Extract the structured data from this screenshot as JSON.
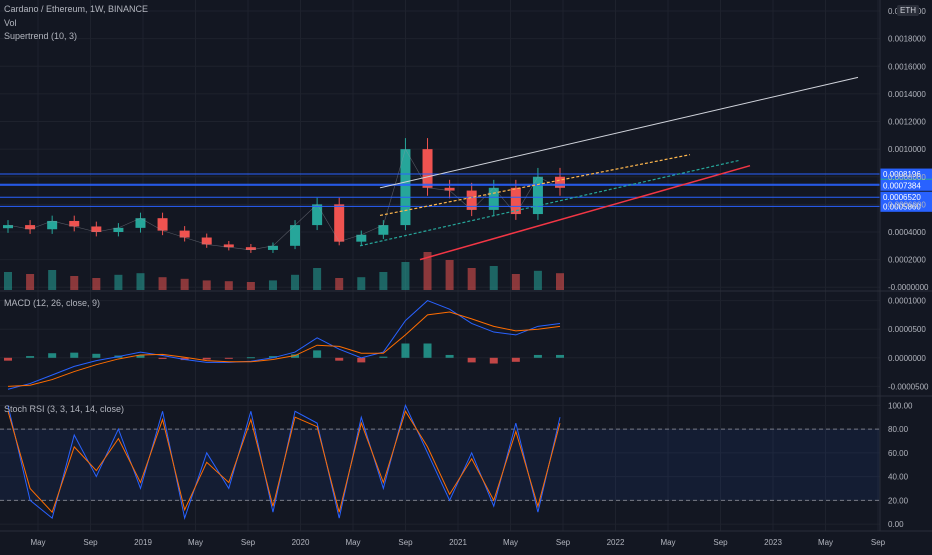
{
  "header": {
    "title": "Cardano / Ethereum, 1W, BINANCE",
    "currency": "ETH",
    "vol_label": "Vol",
    "supertrend_label": "Supertrend (10, 3)",
    "macd_label": "MACD (12, 26, close, 9)",
    "stoch_label": "Stoch RSI (3, 3, 14, 14, close)"
  },
  "colors": {
    "background": "#131722",
    "grid": "#1e222d",
    "up": "#26a69a",
    "down": "#ef5350",
    "horizontal_levels": "#2962ff",
    "macd_line": "#2962ff",
    "signal_line": "#ff6d00",
    "stoch_k": "#2962ff",
    "stoch_d": "#ff6d00"
  },
  "x_axis": {
    "labels": [
      "May",
      "Sep",
      "2019",
      "May",
      "Sep",
      "2020",
      "May",
      "Sep",
      "2021",
      "May",
      "Sep",
      "2022",
      "May",
      "Sep",
      "2023",
      "May",
      "Sep"
    ]
  },
  "chart_data": [
    {
      "type": "line",
      "title": "Cardano / Ethereum, 1W, BINANCE",
      "y_axis_ticks": [
        "0.0020000",
        "0.0018000",
        "0.0016000",
        "0.0014000",
        "0.0012000",
        "0.0010000",
        "0.0008000",
        "0.0006000",
        "0.0004000",
        "0.0002000",
        "-0.0000000"
      ],
      "ylim": [
        -2e-05,
        0.00208
      ],
      "x": [
        "2018-04",
        "2018-06",
        "2018-08",
        "2018-10",
        "2018-12",
        "2019-02",
        "2019-04",
        "2019-06",
        "2019-08",
        "2019-10",
        "2019-12",
        "2020-02",
        "2020-04",
        "2020-06",
        "2020-08",
        "2020-10",
        "2020-12",
        "2021-01",
        "2021-02",
        "2021-03",
        "2021-04",
        "2021-05",
        "2021-06",
        "2021-07",
        "2021-08",
        "2021-09"
      ],
      "close": [
        0.00045,
        0.00042,
        0.00048,
        0.00044,
        0.0004,
        0.00043,
        0.0005,
        0.00041,
        0.00036,
        0.00031,
        0.00029,
        0.00027,
        0.0003,
        0.00045,
        0.0006,
        0.00033,
        0.00038,
        0.00045,
        0.001,
        0.00072,
        0.0007,
        0.00056,
        0.00072,
        0.00053,
        0.0008,
        0.00072
      ],
      "volume_relative": [
        0.45,
        0.4,
        0.5,
        0.35,
        0.3,
        0.38,
        0.42,
        0.32,
        0.28,
        0.24,
        0.22,
        0.2,
        0.24,
        0.38,
        0.55,
        0.3,
        0.32,
        0.45,
        0.7,
        0.95,
        0.75,
        0.55,
        0.6,
        0.4,
        0.48,
        0.42
      ],
      "price_labels": [
        "0.0008196",
        "0.0007461",
        "0.0007384",
        "0.0006520",
        "0.0005860"
      ]
    },
    {
      "type": "line",
      "title": "MACD (12, 26, close, 9)",
      "y_axis_ticks": [
        "0.0001000",
        "0.0000500",
        "0.0000000",
        "-0.0000500"
      ],
      "ylim": [
        -6.5e-05,
        0.000115
      ],
      "x": [
        "2018-04",
        "2018-06",
        "2018-08",
        "2018-10",
        "2018-12",
        "2019-02",
        "2019-04",
        "2019-06",
        "2019-08",
        "2019-10",
        "2019-12",
        "2020-02",
        "2020-04",
        "2020-06",
        "2020-08",
        "2020-10",
        "2020-12",
        "2021-01",
        "2021-02",
        "2021-03",
        "2021-04",
        "2021-05",
        "2021-06",
        "2021-07",
        "2021-08",
        "2021-09"
      ],
      "series": [
        {
          "values": [
            -5.5e-05,
            -4.5e-05,
            -3e-05,
            -1.5e-05,
            -5e-06,
            2e-06,
            1e-05,
            4e-06,
            -3e-06,
            -8e-06,
            -8e-06,
            -6e-06,
            0.0,
            1e-05,
            3.5e-05,
            1.5e-05,
            0.0,
            1e-05,
            6.5e-05,
            0.0001,
            8.5e-05,
            6e-05,
            4.5e-05,
            4e-05,
            5.5e-05,
            6e-05
          ]
        },
        {
          "values": [
            -5e-05,
            -4.8e-05,
            -3.8e-05,
            -2.4e-05,
            -1.2e-05,
            -2e-06,
            5e-06,
            6e-06,
            1e-06,
            -5e-06,
            -7e-06,
            -7e-06,
            -3e-06,
            4e-06,
            2.2e-05,
            2e-05,
            8e-06,
            8e-06,
            4e-05,
            7.5e-05,
            8e-05,
            6.8e-05,
            5.5e-05,
            4.7e-05,
            5e-05,
            5.5e-05
          ]
        }
      ],
      "histogram": [
        -5e-06,
        3e-06,
        8e-06,
        9e-06,
        7e-06,
        4e-06,
        5e-06,
        -2e-06,
        -4e-06,
        -3e-06,
        -1e-06,
        1e-06,
        3e-06,
        6e-06,
        1.3e-05,
        -5e-06,
        -8e-06,
        2e-06,
        2.5e-05,
        2.5e-05,
        5e-06,
        -8e-06,
        -1e-05,
        -7e-06,
        5e-06,
        5e-06
      ]
    },
    {
      "type": "line",
      "title": "Stoch RSI (3, 3, 14, 14, close)",
      "y_axis_ticks": [
        "100.00",
        "80.00",
        "60.00",
        "40.00",
        "20.00",
        "0.00"
      ],
      "ylim": [
        -5,
        107
      ],
      "band": [
        20,
        80
      ],
      "x": [
        "2018-04",
        "2018-06",
        "2018-08",
        "2018-10",
        "2018-12",
        "2019-02",
        "2019-04",
        "2019-06",
        "2019-08",
        "2019-10",
        "2019-12",
        "2020-02",
        "2020-04",
        "2020-06",
        "2020-08",
        "2020-10",
        "2020-12",
        "2021-01",
        "2021-02",
        "2021-03",
        "2021-04",
        "2021-05",
        "2021-06",
        "2021-07",
        "2021-08",
        "2021-09"
      ],
      "series": [
        {
          "values": [
            100,
            20,
            5,
            75,
            40,
            80,
            30,
            95,
            5,
            60,
            30,
            95,
            10,
            95,
            85,
            5,
            90,
            30,
            100,
            60,
            20,
            60,
            15,
            85,
            10,
            90
          ]
        },
        {
          "values": [
            95,
            30,
            10,
            65,
            45,
            72,
            35,
            88,
            12,
            52,
            35,
            88,
            15,
            90,
            82,
            10,
            85,
            35,
            95,
            65,
            25,
            55,
            20,
            78,
            15,
            85
          ]
        }
      ]
    }
  ]
}
